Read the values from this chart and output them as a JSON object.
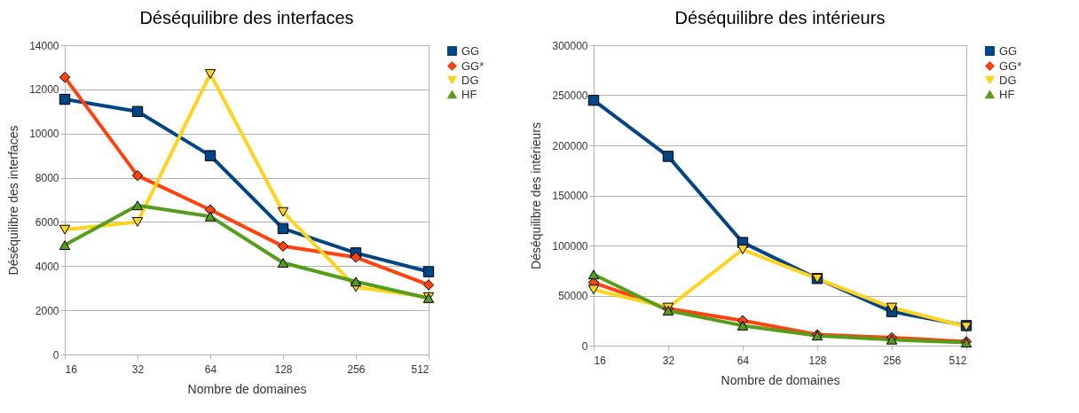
{
  "chart_data": [
    {
      "type": "line",
      "title": "Déséquilibre des interfaces",
      "xlabel": "Nombre de domaines",
      "ylabel": "Déséquilibre des interfaces",
      "categories": [
        "16",
        "32",
        "64",
        "128",
        "256",
        "512"
      ],
      "ylim": [
        0,
        14000
      ],
      "yticks": [
        0,
        2000,
        4000,
        6000,
        8000,
        10000,
        12000,
        14000
      ],
      "grid": "y",
      "legend": "right",
      "series": [
        {
          "name": "GG",
          "color": "#004586",
          "marker": "square",
          "values": [
            11550,
            11000,
            9000,
            5700,
            4600,
            3750
          ]
        },
        {
          "name": "GG*",
          "color": "#ff420e",
          "marker": "diamond",
          "values": [
            12550,
            8100,
            6550,
            4900,
            4400,
            3150
          ]
        },
        {
          "name": "DG",
          "color": "#ffd320",
          "marker": "triangle-down",
          "values": [
            5650,
            6000,
            12700,
            6450,
            3050,
            2600
          ]
        },
        {
          "name": "HF",
          "color": "#579d1c",
          "marker": "triangle",
          "values": [
            4950,
            6750,
            6250,
            4150,
            3300,
            2550
          ]
        }
      ]
    },
    {
      "type": "line",
      "title": "Déséquilibre des intérieurs",
      "xlabel": "Nombre de domaines",
      "ylabel": "Déséquilibre des intérieurs",
      "categories": [
        "16",
        "32",
        "64",
        "128",
        "256",
        "512"
      ],
      "ylim": [
        0,
        300000
      ],
      "yticks": [
        0,
        50000,
        100000,
        150000,
        200000,
        250000,
        300000
      ],
      "grid": "y",
      "legend": "right",
      "series": [
        {
          "name": "GG",
          "color": "#004586",
          "marker": "square",
          "values": [
            245000,
            189000,
            103000,
            67000,
            34000,
            20000
          ]
        },
        {
          "name": "GG*",
          "color": "#ff420e",
          "marker": "diamond",
          "values": [
            63000,
            37000,
            25000,
            11000,
            8000,
            4000
          ]
        },
        {
          "name": "DG",
          "color": "#ffd320",
          "marker": "triangle-down",
          "values": [
            56000,
            38000,
            96000,
            67000,
            38000,
            19000
          ]
        },
        {
          "name": "HF",
          "color": "#579d1c",
          "marker": "triangle",
          "values": [
            71000,
            35000,
            20000,
            10000,
            6000,
            3000
          ]
        }
      ]
    }
  ]
}
